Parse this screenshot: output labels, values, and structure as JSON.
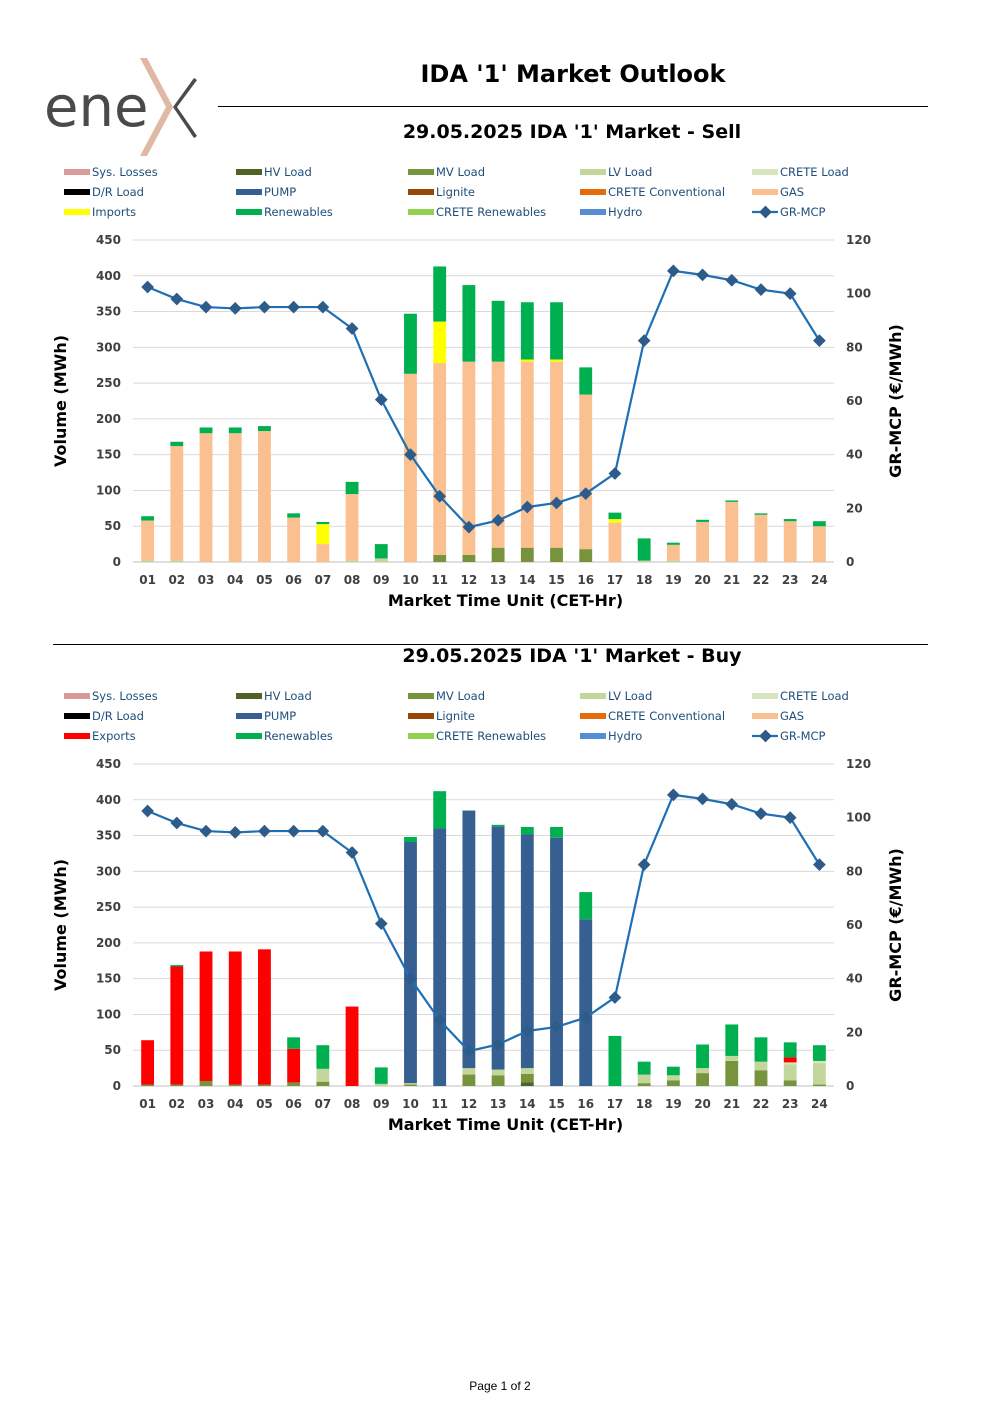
{
  "logo": {
    "text": "ene",
    "accent_letter": "x",
    "accent_color": "#dfb9a4",
    "text_color": "#4a4a4a"
  },
  "header": {
    "title": "IDA '1' Market Outlook"
  },
  "footer": {
    "page": "Page 1 of 2"
  },
  "chart_data": [
    {
      "id": "sell",
      "type": "bar",
      "stacked": true,
      "title": "29.05.2025  IDA '1' Market - Sell",
      "xlabel": "Market Time Unit (CET-Hr)",
      "ylabel": "Volume (MWh)",
      "y2label": "GR-MCP (€/MWh)",
      "ylim": [
        0,
        450
      ],
      "yticks": [
        0,
        50,
        100,
        150,
        200,
        250,
        300,
        350,
        400,
        450
      ],
      "y2lim": [
        0,
        120
      ],
      "y2ticks": [
        0,
        20,
        40,
        60,
        80,
        100,
        120
      ],
      "gridlines": true,
      "categories": [
        "01",
        "02",
        "03",
        "04",
        "05",
        "06",
        "07",
        "08",
        "09",
        "10",
        "11",
        "12",
        "13",
        "14",
        "15",
        "16",
        "17",
        "18",
        "19",
        "20",
        "21",
        "22",
        "23",
        "24"
      ],
      "legend": [
        {
          "name": "Sys. Losses",
          "color": "#d99a9a",
          "kind": "bar"
        },
        {
          "name": "HV Load",
          "color": "#4f6228",
          "kind": "bar"
        },
        {
          "name": "MV Load",
          "color": "#77933c",
          "kind": "bar"
        },
        {
          "name": "LV Load",
          "color": "#c3d69b",
          "kind": "bar"
        },
        {
          "name": "CRETE Load",
          "color": "#d7e4bd",
          "kind": "bar"
        },
        {
          "name": "D/R Load",
          "color": "#000000",
          "kind": "bar"
        },
        {
          "name": "PUMP",
          "color": "#376092",
          "kind": "bar"
        },
        {
          "name": "Lignite",
          "color": "#974806",
          "kind": "bar"
        },
        {
          "name": "CRETE Conventional",
          "color": "#e46c0a",
          "kind": "bar"
        },
        {
          "name": "GAS",
          "color": "#fac090",
          "kind": "bar"
        },
        {
          "name": "Imports",
          "color": "#ffff00",
          "kind": "bar"
        },
        {
          "name": "Renewables",
          "color": "#00b050",
          "kind": "bar"
        },
        {
          "name": "CRETE Renewables",
          "color": "#92d050",
          "kind": "bar"
        },
        {
          "name": "Hydro",
          "color": "#558ed5",
          "kind": "bar"
        },
        {
          "name": "GR-MCP",
          "color": "#1f6fb5",
          "kind": "line"
        }
      ],
      "series": [
        {
          "name": "MV Load",
          "color": "#77933c",
          "values": [
            0,
            0,
            0,
            0,
            0,
            0,
            0,
            0,
            0,
            0,
            10,
            10,
            20,
            20,
            20,
            18,
            0,
            0,
            0,
            0,
            0,
            0,
            0,
            0
          ]
        },
        {
          "name": "LV Load",
          "color": "#c3d69b",
          "values": [
            2,
            2,
            0,
            0,
            0,
            0,
            0,
            2,
            5,
            0,
            0,
            0,
            0,
            0,
            0,
            0,
            0,
            2,
            2,
            0,
            0,
            0,
            0,
            0
          ]
        },
        {
          "name": "GAS",
          "color": "#fac090",
          "values": [
            56,
            160,
            180,
            180,
            183,
            62,
            25,
            93,
            0,
            263,
            268,
            270,
            260,
            260,
            260,
            216,
            55,
            0,
            22,
            56,
            84,
            66,
            57,
            50
          ]
        },
        {
          "name": "Imports",
          "color": "#ffff00",
          "values": [
            0,
            0,
            0,
            0,
            0,
            0,
            28,
            0,
            0,
            0,
            58,
            0,
            0,
            3,
            3,
            0,
            5,
            0,
            0,
            0,
            0,
            0,
            0,
            0
          ]
        },
        {
          "name": "Renewables",
          "color": "#00b050",
          "values": [
            6,
            6,
            8,
            8,
            7,
            6,
            3,
            17,
            20,
            84,
            77,
            107,
            85,
            80,
            80,
            38,
            9,
            31,
            3,
            3,
            2,
            2,
            3,
            7
          ]
        }
      ],
      "line": {
        "name": "GR-MCP",
        "color": "#1f6fb5",
        "axis": "y2",
        "values": [
          102.5,
          98,
          95,
          94.5,
          95,
          95,
          95,
          87,
          60.5,
          40,
          24.5,
          13,
          15.5,
          20.5,
          22,
          25.5,
          33,
          82.5,
          108.5,
          107,
          105,
          101.5,
          100,
          82.5
        ]
      }
    },
    {
      "id": "buy",
      "type": "bar",
      "stacked": true,
      "title": "29.05.2025  IDA '1' Market - Buy",
      "xlabel": "Market Time Unit (CET-Hr)",
      "ylabel": "Volume (MWh)",
      "y2label": "GR-MCP (€/MWh)",
      "ylim": [
        0,
        450
      ],
      "yticks": [
        0,
        50,
        100,
        150,
        200,
        250,
        300,
        350,
        400,
        450
      ],
      "y2lim": [
        0,
        120
      ],
      "y2ticks": [
        0,
        20,
        40,
        60,
        80,
        100,
        120
      ],
      "gridlines": true,
      "categories": [
        "01",
        "02",
        "03",
        "04",
        "05",
        "06",
        "07",
        "08",
        "09",
        "10",
        "11",
        "12",
        "13",
        "14",
        "15",
        "16",
        "17",
        "18",
        "19",
        "20",
        "21",
        "22",
        "23",
        "24"
      ],
      "legend": [
        {
          "name": "Sys. Losses",
          "color": "#d99a9a",
          "kind": "bar"
        },
        {
          "name": "HV Load",
          "color": "#4f6228",
          "kind": "bar"
        },
        {
          "name": "MV Load",
          "color": "#77933c",
          "kind": "bar"
        },
        {
          "name": "LV Load",
          "color": "#c3d69b",
          "kind": "bar"
        },
        {
          "name": "CRETE Load",
          "color": "#d7e4bd",
          "kind": "bar"
        },
        {
          "name": "D/R Load",
          "color": "#000000",
          "kind": "bar"
        },
        {
          "name": "PUMP",
          "color": "#376092",
          "kind": "bar"
        },
        {
          "name": "Lignite",
          "color": "#974806",
          "kind": "bar"
        },
        {
          "name": "CRETE Conventional",
          "color": "#e46c0a",
          "kind": "bar"
        },
        {
          "name": "GAS",
          "color": "#fac090",
          "kind": "bar"
        },
        {
          "name": "Exports",
          "color": "#ff0000",
          "kind": "bar"
        },
        {
          "name": "Renewables",
          "color": "#00b050",
          "kind": "bar"
        },
        {
          "name": "CRETE Renewables",
          "color": "#92d050",
          "kind": "bar"
        },
        {
          "name": "Hydro",
          "color": "#558ed5",
          "kind": "bar"
        },
        {
          "name": "GR-MCP",
          "color": "#1f6fb5",
          "kind": "line"
        }
      ],
      "series": [
        {
          "name": "HV Load",
          "color": "#4f6228",
          "values": [
            0,
            0,
            0,
            0,
            0,
            0,
            0,
            0,
            0,
            0,
            0,
            0,
            0,
            5,
            0,
            0,
            0,
            0,
            0,
            0,
            0,
            0,
            0,
            0
          ]
        },
        {
          "name": "MV Load",
          "color": "#77933c",
          "values": [
            2,
            2,
            7,
            2,
            2,
            5,
            6,
            0,
            0,
            2,
            0,
            16,
            15,
            12,
            0,
            0,
            0,
            4,
            8,
            18,
            35,
            22,
            8,
            2
          ]
        },
        {
          "name": "LV Load",
          "color": "#c3d69b",
          "values": [
            0,
            0,
            0,
            0,
            0,
            0,
            18,
            0,
            3,
            2,
            0,
            9,
            8,
            8,
            0,
            0,
            0,
            12,
            7,
            7,
            7,
            12,
            22,
            30
          ]
        },
        {
          "name": "CRETE Load",
          "color": "#d7e4bd",
          "values": [
            0,
            0,
            0,
            0,
            0,
            0,
            0,
            0,
            0,
            0,
            0,
            0,
            0,
            0,
            0,
            0,
            0,
            0,
            0,
            0,
            0,
            0,
            3,
            3
          ]
        },
        {
          "name": "PUMP",
          "color": "#376092",
          "values": [
            0,
            0,
            0,
            0,
            0,
            0,
            0,
            0,
            0,
            337,
            360,
            360,
            340,
            327,
            347,
            233,
            0,
            0,
            0,
            0,
            0,
            0,
            0,
            0
          ]
        },
        {
          "name": "Exports",
          "color": "#ff0000",
          "values": [
            62,
            165,
            181,
            186,
            189,
            47,
            0,
            111,
            0,
            0,
            0,
            0,
            0,
            0,
            0,
            0,
            0,
            0,
            0,
            0,
            0,
            0,
            7,
            0
          ]
        },
        {
          "name": "Renewables",
          "color": "#00b050",
          "values": [
            0,
            2,
            0,
            0,
            0,
            16,
            33,
            0,
            23,
            7,
            52,
            0,
            2,
            10,
            15,
            38,
            70,
            18,
            12,
            33,
            44,
            34,
            21,
            22
          ]
        }
      ],
      "line": {
        "name": "GR-MCP",
        "color": "#1f6fb5",
        "axis": "y2",
        "values": [
          102.5,
          98,
          95,
          94.5,
          95,
          95,
          95,
          87,
          60.5,
          40,
          24.5,
          13,
          15.5,
          20.5,
          22,
          25.5,
          33,
          82.5,
          108.5,
          107,
          105,
          101.5,
          100,
          82.5
        ]
      }
    }
  ]
}
